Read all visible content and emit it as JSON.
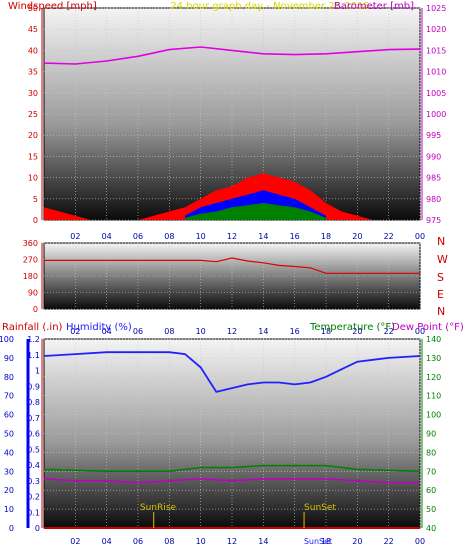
{
  "header": {
    "left_label": "Windspeed [mph]",
    "center_label": "24 hour graph day - November 25 2018",
    "right_label": "Barometer [mb]"
  },
  "colors": {
    "wind": "#ff0000",
    "gust": "#0000ff",
    "avg": "#008000",
    "barometer": "#e000e0",
    "direction": "#e00000",
    "humidity": "#2020ff",
    "temperature": "#008000",
    "dewpoint": "#c000c0",
    "rain": "#cc0000",
    "sun": "#c8a000"
  },
  "x_ticks": [
    "02",
    "04",
    "06",
    "08",
    "10",
    "12",
    "14",
    "16",
    "18",
    "20",
    "22",
    "00"
  ],
  "wind_panel": {
    "y_ticks_left": [
      "0",
      "5",
      "10",
      "15",
      "20",
      "25",
      "30",
      "35",
      "40",
      "45",
      "50"
    ],
    "y_ticks_right": [
      "975",
      "980",
      "985",
      "990",
      "995",
      "1000",
      "1005",
      "1010",
      "1015",
      "1020",
      "1025"
    ]
  },
  "dir_panel": {
    "y_ticks": [
      "0",
      "90",
      "180",
      "270",
      "360"
    ],
    "compass": [
      "N",
      "W",
      "S",
      "E",
      "N"
    ]
  },
  "lower_panel": {
    "rain_label": "Rainfall (.in)",
    "humidity_label": "Humidity (%)",
    "temp_label": "Temperature (°F)",
    "dew_label": "Dew Point (°F)",
    "humidity_ticks": [
      "0",
      "10",
      "20",
      "30",
      "40",
      "50",
      "60",
      "70",
      "80",
      "90",
      "100"
    ],
    "rain_ticks": [
      "0",
      "0.1",
      "0.2",
      "0.3",
      "0.4",
      "0.5",
      "0.6",
      "0.7",
      "0.8",
      "0.9",
      "1",
      "1.1",
      "1.2"
    ],
    "temp_ticks": [
      "40",
      "50",
      "60",
      "70",
      "80",
      "90",
      "100",
      "110",
      "120",
      "130",
      "140"
    ],
    "sunrise_label": "SunRise",
    "sunset_label": "SunSet",
    "sunset_axis_label": "SunSet"
  },
  "chart_data": [
    {
      "type": "line",
      "title": "24 hour graph day - November 25 2018",
      "xlabel": "",
      "ylabel": "Windspeed [mph]",
      "y2label": "Barometer [mb]",
      "ylim": [
        0,
        50
      ],
      "y2lim": [
        975,
        1025
      ],
      "grid": true,
      "series": [
        {
          "name": "Barometer [mb]",
          "axis": "right",
          "x": [
            0,
            2,
            4,
            6,
            8,
            10,
            12,
            14,
            16,
            18,
            20,
            22,
            24
          ],
          "y": [
            1012.0,
            1011.8,
            1012.5,
            1013.6,
            1015.2,
            1015.8,
            1015.0,
            1014.2,
            1014.0,
            1014.2,
            1014.7,
            1015.2,
            1015.3
          ]
        },
        {
          "axis": "left",
          "x": [
            0,
            1,
            2,
            3,
            4,
            5,
            6,
            7,
            8,
            9,
            10,
            11,
            12,
            13,
            14,
            15,
            16,
            17,
            18,
            19,
            20,
            21,
            22,
            23,
            24
          ],
          "y": [
            3,
            2,
            1,
            0,
            0,
            0,
            0,
            1,
            2,
            3,
            5,
            7,
            8,
            10,
            11,
            10,
            9,
            7,
            4,
            2,
            1,
            0,
            0,
            0,
            0
          ]
        },
        {
          "axis": "left",
          "x": [
            9,
            10,
            11,
            12,
            13,
            14,
            15,
            16,
            17,
            18
          ],
          "y": [
            1,
            3,
            4,
            5,
            6,
            7,
            6,
            5,
            3,
            1
          ]
        },
        {
          "axis": "left",
          "x": [
            9,
            10,
            11,
            12,
            13,
            14,
            15,
            16,
            17,
            18
          ],
          "y": [
            0.5,
            1.5,
            2,
            3,
            3.5,
            4,
            3.5,
            3,
            2,
            0.5
          ]
        }
      ]
    },
    {
      "type": "line",
      "ylim": [
        0,
        360
      ],
      "grid": true,
      "series": [
        {
          "x": [
            0,
            10,
            11,
            12,
            13,
            14,
            15,
            16,
            17,
            18,
            24
          ],
          "y": [
            265,
            265,
            258,
            278,
            262,
            252,
            238,
            232,
            225,
            195,
            195
          ]
        }
      ]
    },
    {
      "type": "line",
      "ylabel": "Humidity (%)",
      "y2label": "Temperature (°F)",
      "ylim": [
        0,
        100
      ],
      "y2lim": [
        40,
        140
      ],
      "grid": true,
      "series": [
        {
          "name": "Humidity (%)",
          "axis": "left",
          "x": [
            0,
            2,
            4,
            6,
            8,
            9,
            10,
            11,
            12,
            13,
            14,
            15,
            16,
            17,
            18,
            19,
            20,
            22,
            24
          ],
          "y": [
            91,
            92,
            93,
            93,
            93,
            92,
            85,
            72,
            74,
            76,
            77,
            77,
            76,
            77,
            80,
            84,
            88,
            90,
            91
          ]
        },
        {
          "name": "Temperature (°F)",
          "axis": "right",
          "x": [
            0,
            4,
            8,
            9,
            10,
            12,
            14,
            16,
            18,
            20,
            24
          ],
          "y": [
            71,
            70,
            70,
            71,
            72,
            72,
            73,
            73,
            73,
            71,
            70
          ]
        },
        {
          "name": "Dew Point (°F)",
          "axis": "right",
          "x": [
            0,
            2,
            4,
            6,
            8,
            10,
            12,
            14,
            16,
            18,
            20,
            22,
            24
          ],
          "y": [
            66,
            65,
            65,
            64,
            65,
            66,
            65,
            66,
            66,
            66,
            65,
            64,
            64
          ]
        },
        {
          "name": "Rainfall (.in)",
          "axis": "left",
          "x": [
            0,
            24
          ],
          "y": [
            0,
            0
          ]
        }
      ],
      "annotations": [
        {
          "label": "SunRise",
          "x": 7.0
        },
        {
          "label": "SunSet",
          "x": 16.6
        }
      ]
    }
  ]
}
